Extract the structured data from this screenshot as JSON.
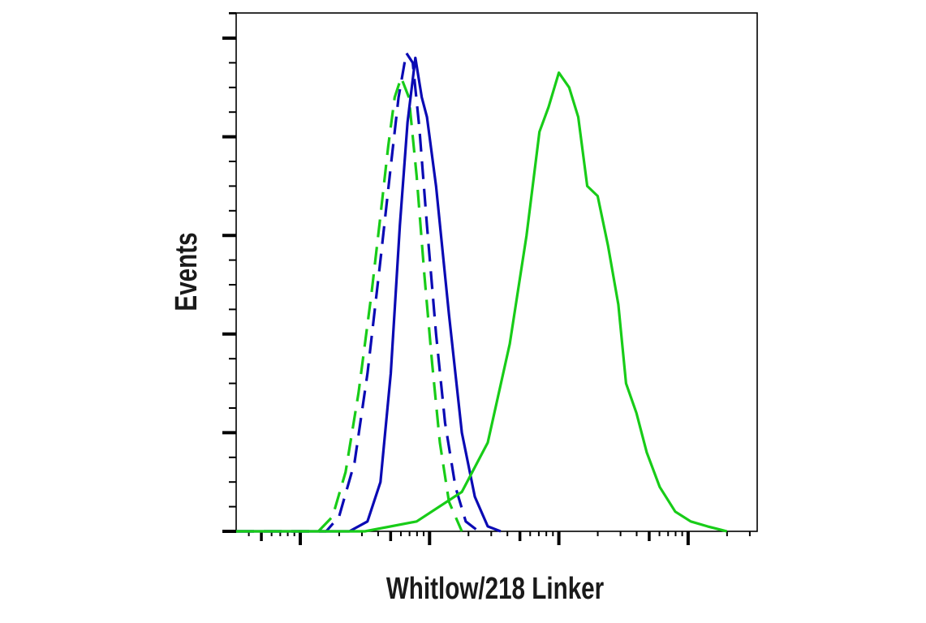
{
  "chart_data": {
    "type": "line",
    "subtype": "flow-cytometry-histogram",
    "title": "",
    "xlabel": "Whitlow/218 Linker",
    "ylabel": "Events",
    "x_scale": "log",
    "x_tick_labels": [],
    "y_tick_labels": [],
    "grid": false,
    "legend": null,
    "colors": {
      "green": "#18cc18",
      "blue": "#0a0ab4",
      "axis": "#000000"
    },
    "x_range_decades": [
      0,
      5
    ],
    "y_range": [
      0,
      100
    ],
    "series": [
      {
        "name": "green-dashed",
        "color": "#18cc18",
        "style": "dashed",
        "x": [
          1.14,
          1.25,
          1.35,
          1.45,
          1.55,
          1.62,
          1.68,
          1.73,
          1.78,
          1.84,
          1.9,
          1.96,
          2.02,
          2.08,
          2.15,
          2.25,
          5.0
        ],
        "y": [
          0,
          3,
          12,
          28,
          48,
          64,
          78,
          88,
          92,
          88,
          72,
          52,
          34,
          18,
          6,
          0,
          0
        ]
      },
      {
        "name": "blue-dashed",
        "color": "#0a0ab4",
        "style": "dashed",
        "x": [
          1.2,
          1.3,
          1.42,
          1.52,
          1.62,
          1.7,
          1.76,
          1.82,
          1.87,
          1.92,
          1.98,
          2.05,
          2.12,
          2.2,
          2.28,
          2.38,
          5.0
        ],
        "y": [
          0,
          3,
          14,
          32,
          55,
          74,
          88,
          97,
          95,
          82,
          62,
          40,
          22,
          9,
          2,
          0,
          0
        ]
      },
      {
        "name": "blue-solid",
        "color": "#0a0ab4",
        "style": "solid",
        "x": [
          1.38,
          1.52,
          1.62,
          1.7,
          1.77,
          1.83,
          1.89,
          1.94,
          1.98,
          2.05,
          2.15,
          2.25,
          2.35,
          2.45,
          2.55,
          5.0
        ],
        "y": [
          0,
          2,
          10,
          32,
          62,
          83,
          96,
          88,
          84,
          70,
          44,
          20,
          7,
          1,
          0,
          0
        ]
      },
      {
        "name": "green-solid",
        "color": "#18cc18",
        "style": "solid",
        "x": [
          1.5,
          1.9,
          2.25,
          2.45,
          2.62,
          2.75,
          2.85,
          2.92,
          3.0,
          3.08,
          3.15,
          3.22,
          3.3,
          3.38,
          3.46,
          3.52,
          3.6,
          3.68,
          3.78,
          3.9,
          4.02,
          4.15,
          4.3,
          5.0
        ],
        "y": [
          0,
          2,
          8,
          18,
          38,
          60,
          81,
          86,
          93,
          90,
          84,
          70,
          68,
          58,
          46,
          30,
          24,
          16,
          9,
          4,
          2,
          1,
          0,
          0
        ]
      }
    ]
  }
}
